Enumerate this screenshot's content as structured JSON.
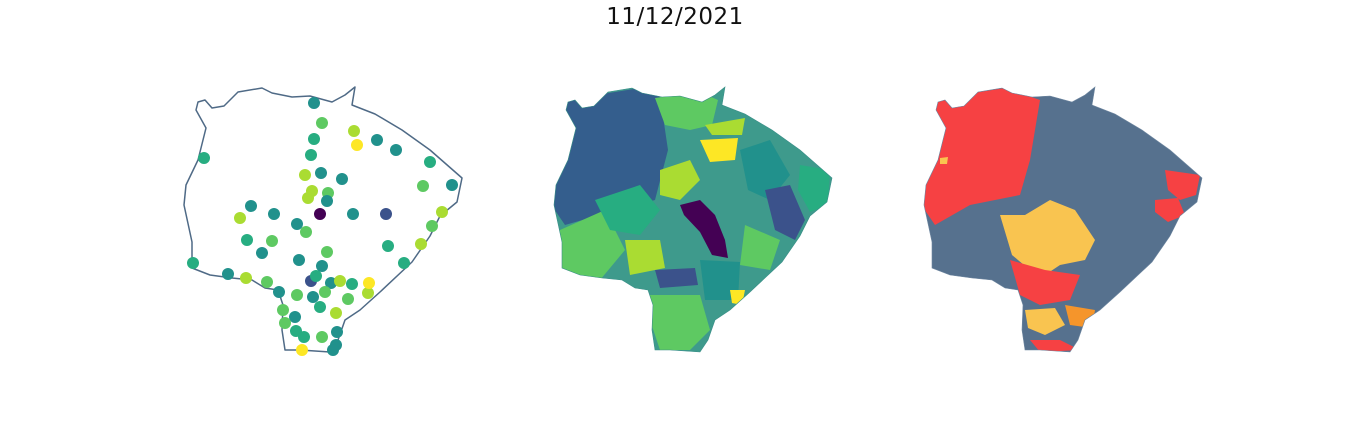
{
  "figure": {
    "title": "11/12/2021"
  },
  "colors": {
    "outline": "#4f6a86",
    "viridis": [
      "#440154",
      "#3b528b",
      "#21918c",
      "#27ad81",
      "#5ec962",
      "#aadc32",
      "#fde725"
    ],
    "risk_red": "#f64143",
    "risk_gray": "#56718e",
    "risk_yellow": "#f9c450",
    "risk_orange": "#f5952b"
  },
  "panels": [
    {
      "name": "station-points-map",
      "kind": "scatter-on-outline"
    },
    {
      "name": "interpolated-choropleth-map",
      "kind": "choropleth"
    },
    {
      "name": "risk-category-map",
      "kind": "categorical-choropleth"
    }
  ],
  "stations": [
    {
      "c": 2
    },
    {
      "c": 4
    },
    {
      "c": 3
    },
    {
      "c": 5
    },
    {
      "c": 6
    },
    {
      "c": 2
    },
    {
      "c": 2
    },
    {
      "c": 3
    },
    {
      "c": 3
    },
    {
      "c": 2
    },
    {
      "c": 5
    },
    {
      "c": 2
    },
    {
      "c": 3
    },
    {
      "c": 4
    },
    {
      "c": 2
    },
    {
      "c": 5
    },
    {
      "c": 4
    },
    {
      "c": 5
    },
    {
      "c": 0
    },
    {
      "c": 2
    },
    {
      "c": 2
    },
    {
      "c": 2
    },
    {
      "c": 5
    },
    {
      "c": 2
    },
    {
      "c": 4
    },
    {
      "c": 2
    },
    {
      "c": 1
    },
    {
      "c": 5
    },
    {
      "c": 4
    },
    {
      "c": 3
    },
    {
      "c": 2
    },
    {
      "c": 4
    },
    {
      "c": 2
    },
    {
      "c": 4
    },
    {
      "c": 2
    },
    {
      "c": 3
    },
    {
      "c": 5
    },
    {
      "c": 3
    },
    {
      "c": 3
    },
    {
      "c": 2
    },
    {
      "c": 5
    },
    {
      "c": 1
    },
    {
      "c": 4
    },
    {
      "c": 3
    },
    {
      "c": 2
    },
    {
      "c": 4
    },
    {
      "c": 2
    },
    {
      "c": 5
    },
    {
      "c": 3
    },
    {
      "c": 4
    },
    {
      "c": 5
    },
    {
      "c": 6
    },
    {
      "c": 2
    },
    {
      "c": 4
    },
    {
      "c": 3
    },
    {
      "c": 4
    },
    {
      "c": 2
    },
    {
      "c": 5
    },
    {
      "c": 3
    },
    {
      "c": 4
    },
    {
      "c": 2
    },
    {
      "c": 3
    },
    {
      "c": 4
    },
    {
      "c": 2
    },
    {
      "c": 6
    },
    {
      "c": 2
    }
  ]
}
